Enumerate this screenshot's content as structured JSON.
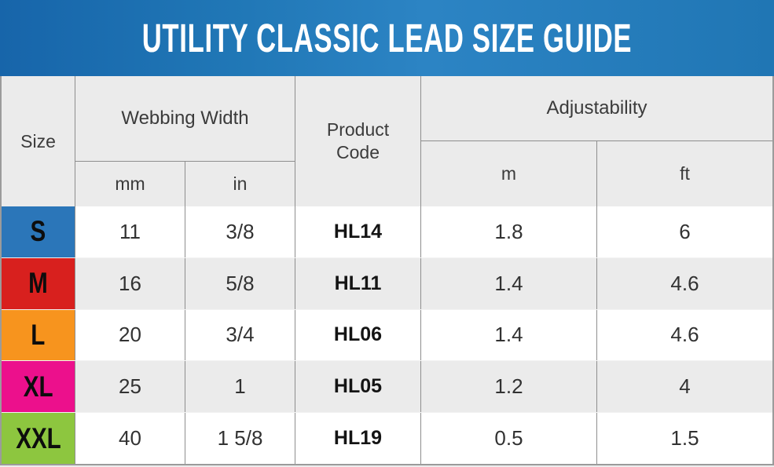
{
  "banner": {
    "title": "UTILITY CLASSIC LEAD SIZE GUIDE",
    "bg_color": "#2077b6",
    "text_color": "#ffffff"
  },
  "table": {
    "grid_line_color": "#8e8e8e",
    "header_bg": "#ebebeb",
    "row_alt_bg": "#ebebeb",
    "headers": {
      "size": "Size",
      "webbing_width": "Webbing Width",
      "unit_mm": "mm",
      "unit_in": "in",
      "product_code": "Product\nCode",
      "adjustability": "Adjustability",
      "unit_m": "m",
      "unit_ft": "ft"
    },
    "rows": [
      {
        "size": "S",
        "color": "#2b76b9",
        "mm": "11",
        "in": "3/8",
        "code": "HL14",
        "m": "1.8",
        "ft": "6"
      },
      {
        "size": "M",
        "color": "#d8201e",
        "mm": "16",
        "in": "5/8",
        "code": "HL11",
        "m": "1.4",
        "ft": "4.6"
      },
      {
        "size": "L",
        "color": "#f7941e",
        "mm": "20",
        "in": "3/4",
        "code": "HL06",
        "m": "1.4",
        "ft": "4.6"
      },
      {
        "size": "XL",
        "color": "#ec108c",
        "mm": "25",
        "in": "1",
        "code": "HL05",
        "m": "1.2",
        "ft": "4"
      },
      {
        "size": "XXL",
        "color": "#8dc63f",
        "mm": "40",
        "in": "1 5/8",
        "code": "HL19",
        "m": "0.5",
        "ft": "1.5"
      }
    ]
  },
  "chart_data": {
    "type": "table",
    "title": "UTILITY CLASSIC LEAD SIZE GUIDE",
    "columns": [
      "Size",
      "Webbing Width (mm)",
      "Webbing Width (in)",
      "Product Code",
      "Adjustability (m)",
      "Adjustability (ft)"
    ],
    "rows": [
      [
        "S",
        11,
        "3/8",
        "HL14",
        1.8,
        6
      ],
      [
        "M",
        16,
        "5/8",
        "HL11",
        1.4,
        4.6
      ],
      [
        "L",
        20,
        "3/4",
        "HL06",
        1.4,
        4.6
      ],
      [
        "XL",
        25,
        "1",
        "HL05",
        1.2,
        4
      ],
      [
        "XXL",
        40,
        "1 5/8",
        "HL19",
        0.5,
        1.5
      ]
    ],
    "legend_position": "none",
    "grid": true
  }
}
